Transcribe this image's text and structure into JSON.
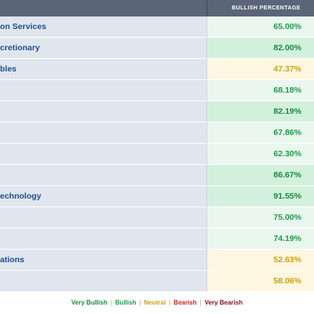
{
  "table": {
    "header": {
      "percentage_column": "BULLISH PERCENTAGE"
    },
    "rows": [
      {
        "sector": "on Services",
        "pct": "65.00%",
        "level": "bullish"
      },
      {
        "sector": "cretionary",
        "pct": "82.00%",
        "level": "very-bullish"
      },
      {
        "sector": "bles",
        "pct": "47.37%",
        "level": "neutral"
      },
      {
        "sector": "",
        "pct": "68.18%",
        "level": "bullish"
      },
      {
        "sector": "",
        "pct": "82.19%",
        "level": "very-bullish"
      },
      {
        "sector": "",
        "pct": "67.86%",
        "level": "bullish"
      },
      {
        "sector": "",
        "pct": "62.30%",
        "level": "bullish"
      },
      {
        "sector": "",
        "pct": "86.67%",
        "level": "very-bullish"
      },
      {
        "sector": "echnology",
        "pct": "91.55%",
        "level": "very-bullish"
      },
      {
        "sector": "",
        "pct": "75.00%",
        "level": "bullish"
      },
      {
        "sector": "",
        "pct": "74.19%",
        "level": "bullish"
      },
      {
        "sector": "ations",
        "pct": "52.63%",
        "level": "neutral"
      },
      {
        "sector": "",
        "pct": "58.06%",
        "level": "neutral"
      }
    ]
  },
  "legend": {
    "very_bullish": "Very Bullish",
    "bullish": "Bullish",
    "neutral": "Neutral",
    "bearish": "Bearish",
    "very_bearish": "Very Bearish",
    "separator": "|"
  },
  "colors": {
    "very_bullish": "#178a3f",
    "bullish": "#1f9a4a",
    "neutral": "#c9a116",
    "bearish": "#c62828",
    "very_bearish": "#7a1522",
    "header_bg": "#5a6578",
    "sector_text": "#1f4e8c"
  }
}
